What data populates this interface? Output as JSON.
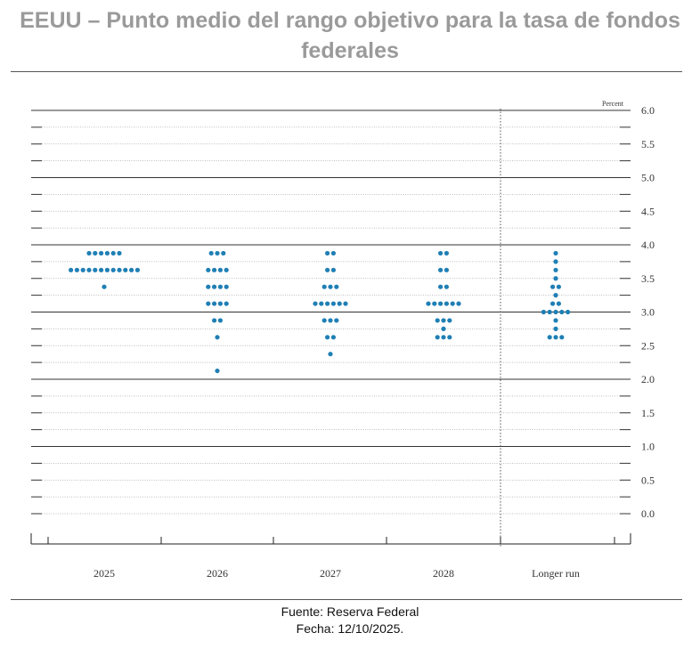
{
  "title": "EEUU – Punto medio del rango objetivo para la tasa de fondos federales",
  "footer": {
    "source": "Fuente: Reserva Federal",
    "date": "Fecha: 12/10/2025."
  },
  "colors": {
    "dot": "#1f7fb5",
    "axis": "#222222",
    "grid": "#999999"
  },
  "chart_data": {
    "type": "scatter",
    "unit_label": "Percent",
    "ylim": [
      -0.25,
      6.0
    ],
    "yticks": [
      "6.0",
      "5.5",
      "5.0",
      "4.5",
      "4.0",
      "3.5",
      "3.0",
      "2.5",
      "2.0",
      "1.5",
      "1.0",
      "0.5",
      "0.0"
    ],
    "grid": true,
    "categories": [
      "2025",
      "2026",
      "2027",
      "2028",
      "Longer run"
    ],
    "dots": [
      {
        "category": "2025",
        "rates": [
          3.875,
          3.625,
          3.375
        ],
        "counts": [
          6,
          12,
          1
        ]
      },
      {
        "category": "2026",
        "rates": [
          3.875,
          3.625,
          3.375,
          3.125,
          2.875,
          2.625,
          2.125
        ],
        "counts": [
          3,
          4,
          4,
          4,
          2,
          1,
          1
        ]
      },
      {
        "category": "2027",
        "rates": [
          3.875,
          3.625,
          3.375,
          3.125,
          2.875,
          2.625,
          2.375
        ],
        "counts": [
          2,
          2,
          3,
          6,
          3,
          2,
          1
        ]
      },
      {
        "category": "2028",
        "rates": [
          3.875,
          3.625,
          3.375,
          3.125,
          2.875,
          2.75,
          2.625
        ],
        "counts": [
          2,
          2,
          2,
          6,
          3,
          1,
          3
        ]
      },
      {
        "category": "Longer run",
        "rates": [
          3.875,
          3.75,
          3.625,
          3.5,
          3.375,
          3.25,
          3.125,
          3.0,
          2.875,
          2.75,
          2.625
        ],
        "counts": [
          1,
          1,
          1,
          1,
          2,
          1,
          2,
          5,
          1,
          1,
          3
        ]
      }
    ]
  }
}
